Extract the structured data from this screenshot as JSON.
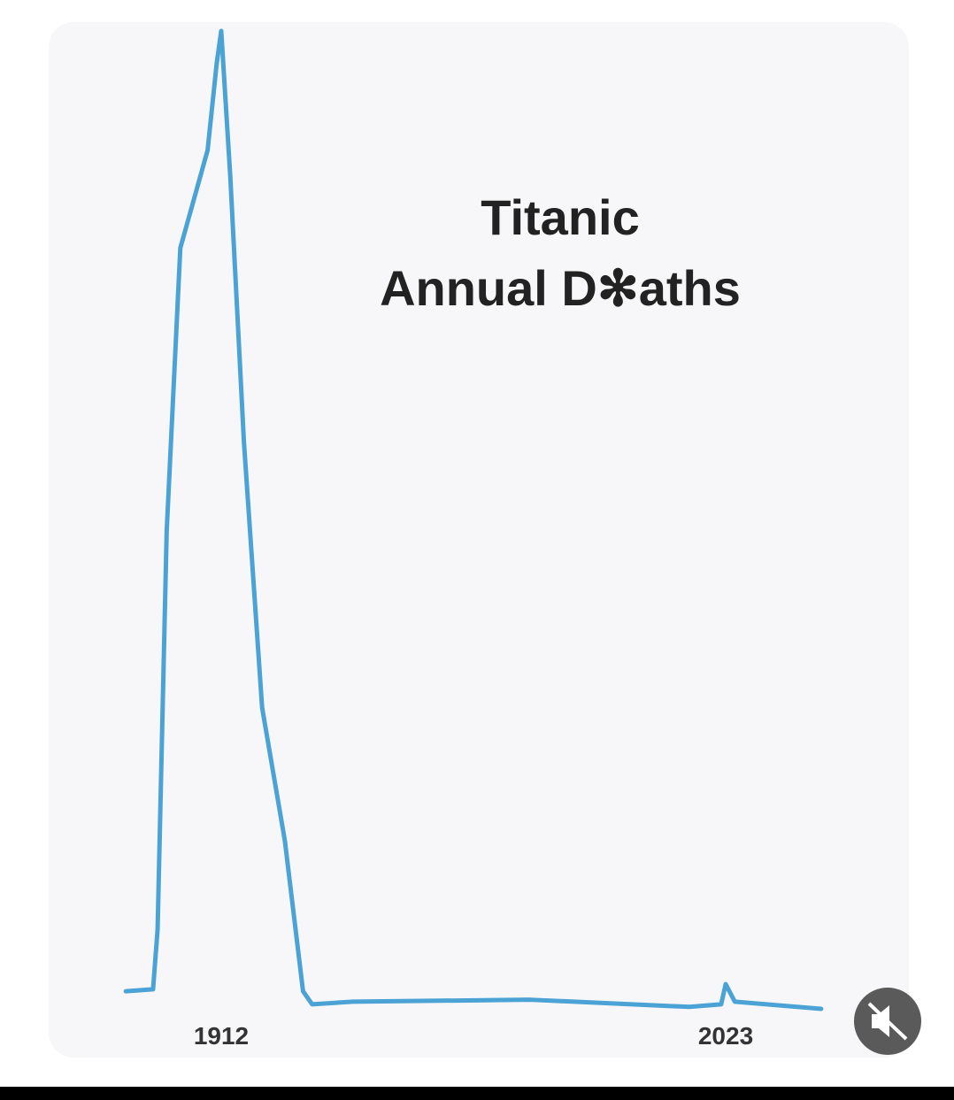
{
  "chart_data": {
    "type": "line",
    "title": [
      "Titanic",
      "Annual D✻aths"
    ],
    "x": [
      1891,
      1897,
      1898,
      1900,
      1903,
      1909,
      1911,
      1912,
      1914,
      1917,
      1921,
      1926,
      1930,
      1932,
      1941,
      1980,
      2015,
      2022,
      2023,
      2025,
      2044
    ],
    "series": [
      {
        "color": "#4ba2d4",
        "values": [
          27,
          30,
          122,
          733,
          1167,
          1317,
          1450,
          1500,
          1276,
          869,
          462,
          258,
          27,
          7,
          11,
          14,
          3,
          7,
          38,
          11,
          0
        ]
      }
    ],
    "xlim": [
      1890,
      2045
    ],
    "xticks": [
      1912,
      2023
    ],
    "ylim": [
      0,
      1500
    ]
  }
}
